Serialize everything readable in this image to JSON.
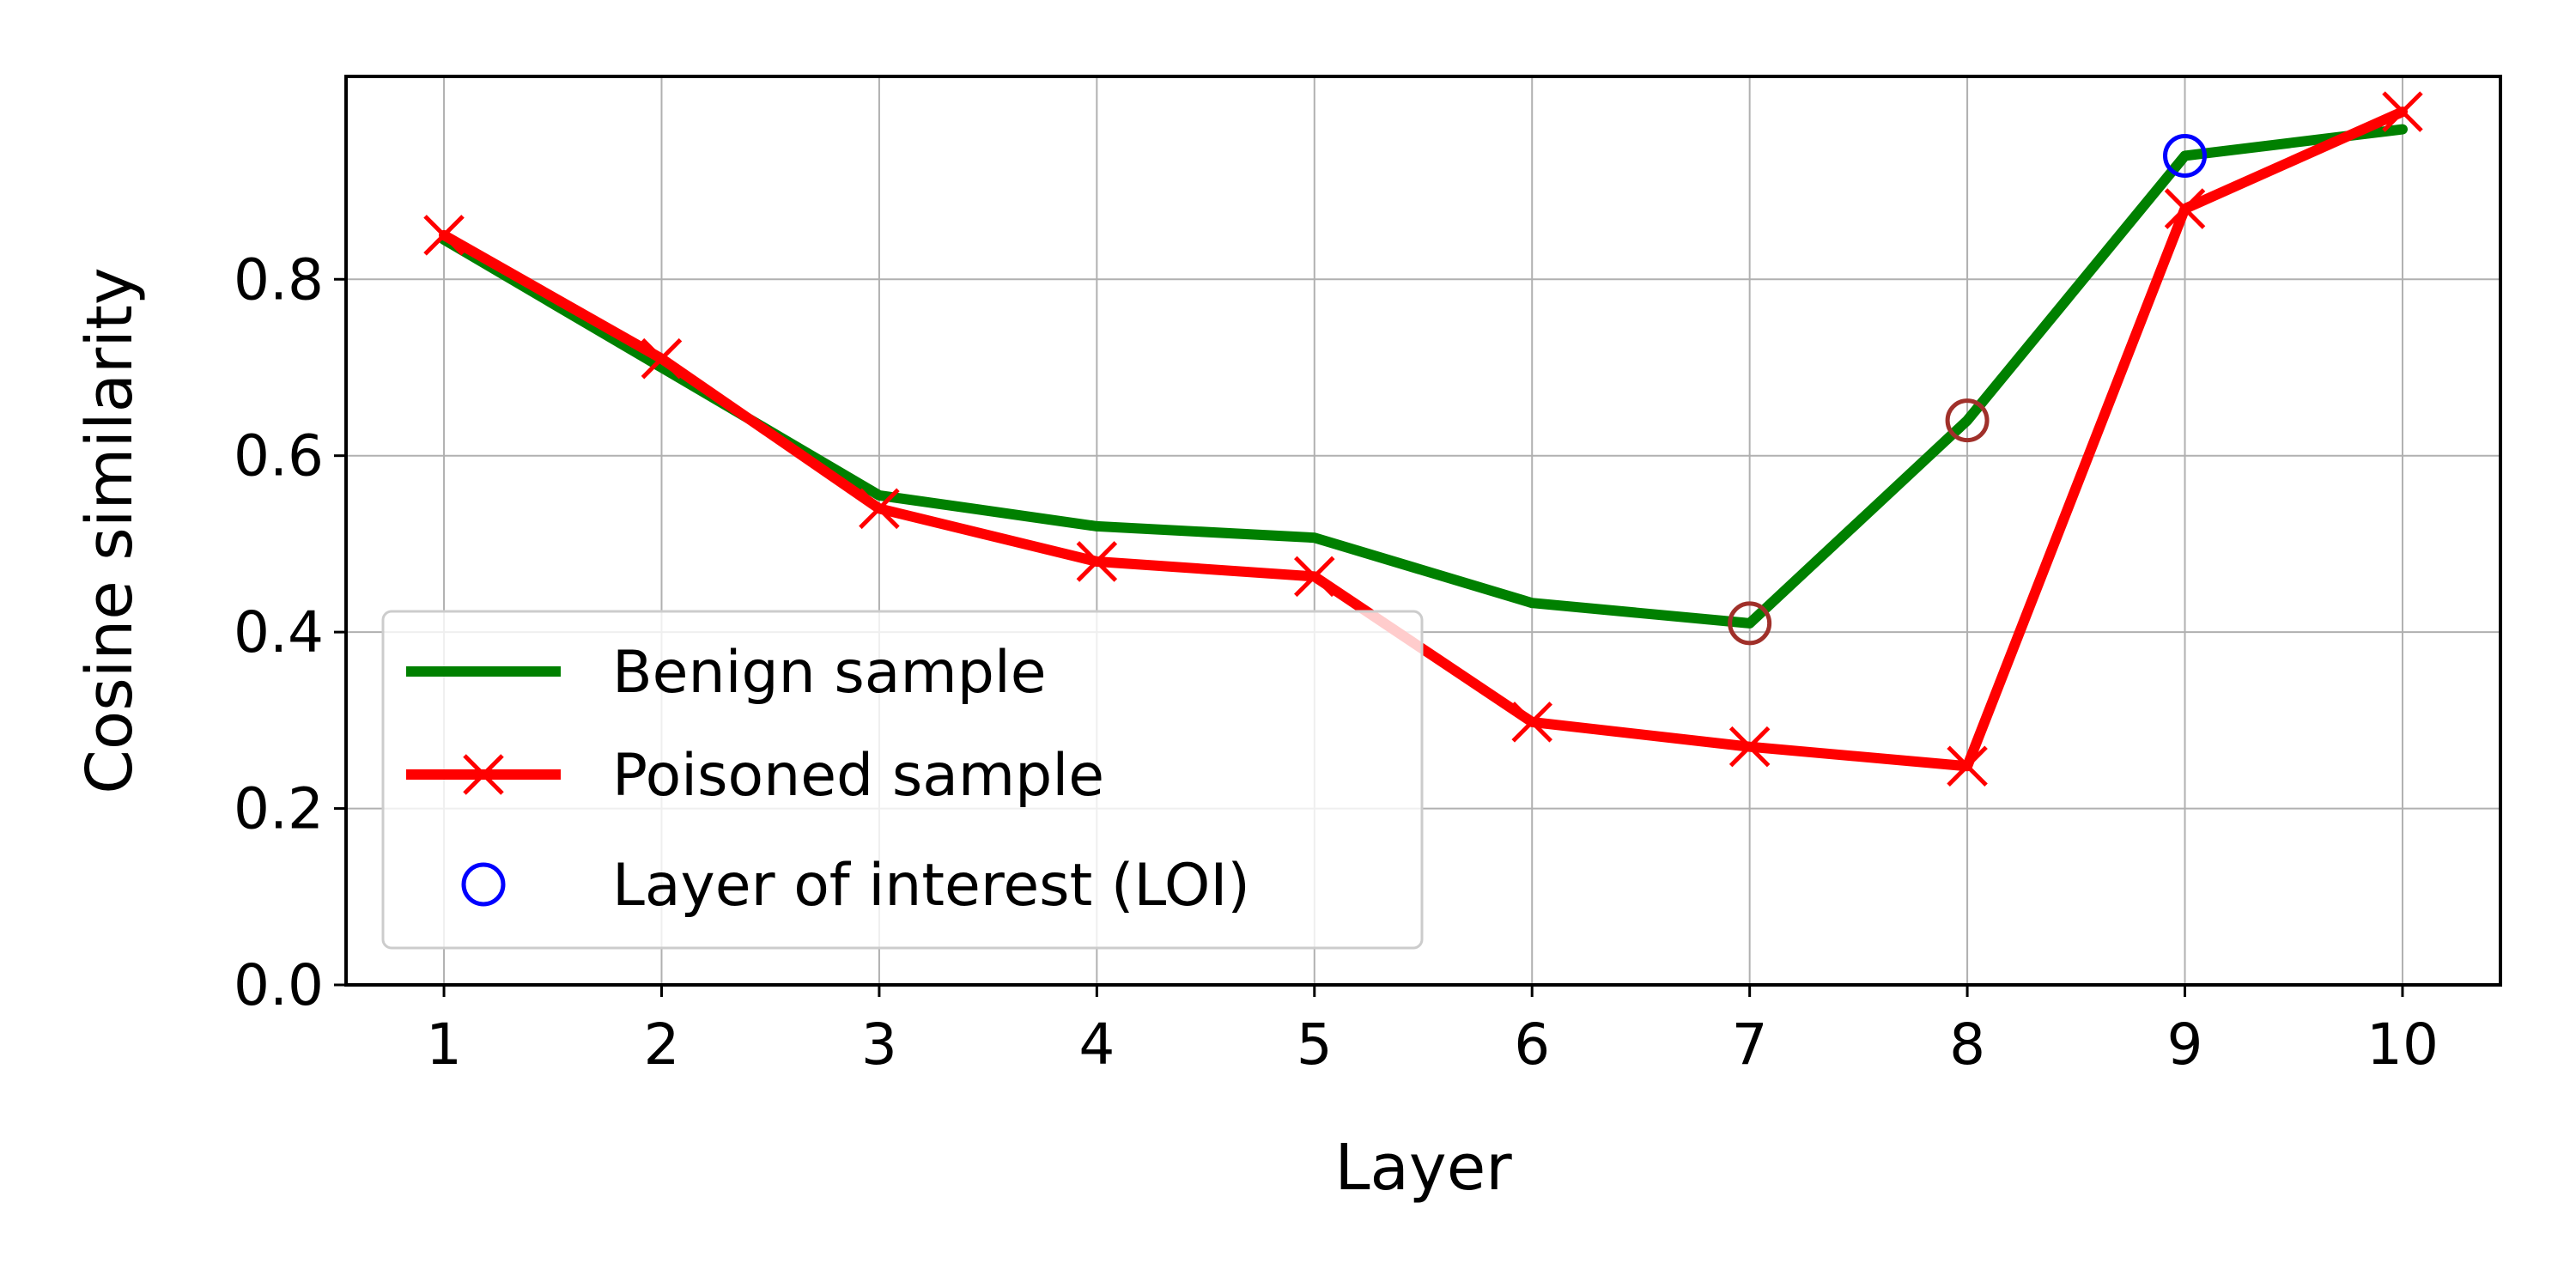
{
  "chart_data": {
    "type": "line",
    "title": "",
    "xlabel": "Layer",
    "ylabel": "Cosine similarity",
    "x": [
      1,
      2,
      3,
      4,
      5,
      6,
      7,
      8,
      9,
      10
    ],
    "xticks": [
      "1",
      "2",
      "3",
      "4",
      "5",
      "6",
      "7",
      "8",
      "9",
      "10"
    ],
    "xlim": [
      0.55,
      10.45
    ],
    "ylim": [
      0.0,
      1.03
    ],
    "yticks": [
      0.0,
      0.2,
      0.4,
      0.6,
      0.8
    ],
    "ytick_labels": [
      "0.0",
      "0.2",
      "0.4",
      "0.6",
      "0.8"
    ],
    "grid": true,
    "legend_position": "lower-left",
    "series": [
      {
        "name": "Benign sample",
        "color": "#008000",
        "marker": "none",
        "values": [
          0.845,
          0.7,
          0.555,
          0.52,
          0.507,
          0.433,
          0.41,
          0.64,
          0.94,
          0.97
        ]
      },
      {
        "name": "Poisoned sample",
        "color": "#ff0000",
        "marker": "x",
        "values": [
          0.85,
          0.71,
          0.54,
          0.48,
          0.463,
          0.298,
          0.27,
          0.248,
          0.88,
          0.99
        ]
      }
    ],
    "loi_legend": "Layer of interest (LOI)",
    "loi_points": [
      {
        "x": 7,
        "y": 0.41,
        "color": "#a0302a"
      },
      {
        "x": 8,
        "y": 0.64,
        "color": "#a0302a"
      },
      {
        "x": 9,
        "y": 0.94,
        "color": "#0000ff"
      }
    ]
  }
}
